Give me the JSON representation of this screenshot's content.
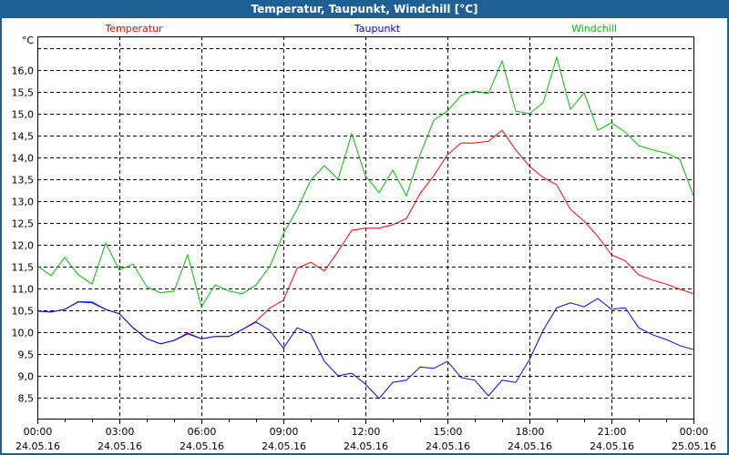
{
  "window": {
    "title": "Temperatur, Taupunkt, Windchill [°C]"
  },
  "chart_data": {
    "type": "line",
    "title": "Temperatur, Taupunkt, Windchill [°C]",
    "ylabel": "°C",
    "xlim": [
      0,
      24
    ],
    "ylim": [
      8.02,
      16.77
    ],
    "grid": true,
    "legend_position": "top",
    "y_ticks": [
      {
        "v": 8.5,
        "label": "8,5"
      },
      {
        "v": 9.0,
        "label": "9,0"
      },
      {
        "v": 9.5,
        "label": "9,5"
      },
      {
        "v": 10.0,
        "label": "10,0"
      },
      {
        "v": 10.5,
        "label": "10,5"
      },
      {
        "v": 11.0,
        "label": "11,0"
      },
      {
        "v": 11.5,
        "label": "11,5"
      },
      {
        "v": 12.0,
        "label": "12,0"
      },
      {
        "v": 12.5,
        "label": "12,5"
      },
      {
        "v": 13.0,
        "label": "13,0"
      },
      {
        "v": 13.5,
        "label": "13,5"
      },
      {
        "v": 14.0,
        "label": "14,0"
      },
      {
        "v": 14.5,
        "label": "14,5"
      },
      {
        "v": 15.0,
        "label": "15,0"
      },
      {
        "v": 15.5,
        "label": "15,5"
      },
      {
        "v": 16.0,
        "label": "16,0"
      },
      {
        "v": 16.5,
        "label": ""
      }
    ],
    "x_ticks": [
      {
        "v": 0,
        "time": "00:00",
        "date": "24.05.16"
      },
      {
        "v": 3,
        "time": "03:00",
        "date": "24.05.16"
      },
      {
        "v": 6,
        "time": "06:00",
        "date": "24.05.16"
      },
      {
        "v": 9,
        "time": "09:00",
        "date": "24.05.16"
      },
      {
        "v": 12,
        "time": "12:00",
        "date": "24.05.16"
      },
      {
        "v": 15,
        "time": "15:00",
        "date": "24.05.16"
      },
      {
        "v": 18,
        "time": "18:00",
        "date": "24.05.16"
      },
      {
        "v": 21,
        "time": "21:00",
        "date": "24.05.16"
      },
      {
        "v": 24,
        "time": "00:00",
        "date": "25.05.16"
      }
    ],
    "x": [
      0,
      0.5,
      1,
      1.5,
      2,
      2.5,
      3,
      3.5,
      4,
      4.5,
      5,
      5.5,
      6,
      6.5,
      7,
      7.5,
      8,
      8.5,
      9,
      9.5,
      10,
      10.5,
      11,
      11.5,
      12,
      12.5,
      13,
      13.5,
      14,
      14.5,
      15,
      15.5,
      16,
      16.5,
      17,
      17.5,
      18,
      18.5,
      19,
      19.5,
      20,
      20.5,
      21,
      21.5,
      22,
      22.5,
      23,
      23.5,
      24
    ],
    "series": [
      {
        "name": "Temperatur",
        "color": "#ff0000",
        "values": [
          10.48,
          10.46,
          10.52,
          10.7,
          10.69,
          10.52,
          10.42,
          10.1,
          9.85,
          9.73,
          9.81,
          9.98,
          9.85,
          9.9,
          9.9,
          10.06,
          10.25,
          10.55,
          10.73,
          11.46,
          11.6,
          11.4,
          11.85,
          12.33,
          12.38,
          12.38,
          12.46,
          12.6,
          13.17,
          13.58,
          14.06,
          14.33,
          14.33,
          14.37,
          14.62,
          14.17,
          13.8,
          13.54,
          13.37,
          12.81,
          12.54,
          12.19,
          11.77,
          11.63,
          11.31,
          11.19,
          11.1,
          10.98,
          10.88
        ]
      },
      {
        "name": "Taupunkt",
        "color": "#0000ff",
        "values": [
          10.48,
          10.46,
          10.52,
          10.69,
          10.67,
          10.52,
          10.42,
          10.1,
          9.85,
          9.73,
          9.81,
          9.96,
          9.85,
          9.9,
          9.9,
          10.06,
          10.23,
          10.04,
          9.63,
          10.1,
          9.96,
          9.33,
          9.0,
          9.06,
          8.81,
          8.48,
          8.85,
          8.9,
          9.2,
          9.17,
          9.33,
          8.96,
          8.9,
          8.54,
          8.9,
          8.85,
          9.37,
          10.04,
          10.56,
          10.67,
          10.58,
          10.77,
          10.52,
          10.56,
          10.1,
          9.94,
          9.83,
          9.69,
          9.6
        ]
      },
      {
        "name": "Windchill",
        "color": "#00c000",
        "values": [
          11.52,
          11.29,
          11.71,
          11.31,
          11.1,
          12.04,
          11.42,
          11.56,
          11.04,
          10.9,
          10.94,
          11.77,
          10.58,
          11.08,
          10.94,
          10.88,
          11.08,
          11.5,
          12.25,
          12.81,
          13.48,
          13.81,
          13.5,
          14.54,
          13.58,
          13.19,
          13.71,
          13.12,
          14.06,
          14.85,
          15.06,
          15.42,
          15.52,
          15.46,
          16.21,
          15.06,
          15.0,
          15.25,
          16.29,
          15.1,
          15.48,
          14.62,
          14.79,
          14.58,
          14.27,
          14.17,
          14.1,
          13.96,
          13.12
        ]
      }
    ]
  }
}
